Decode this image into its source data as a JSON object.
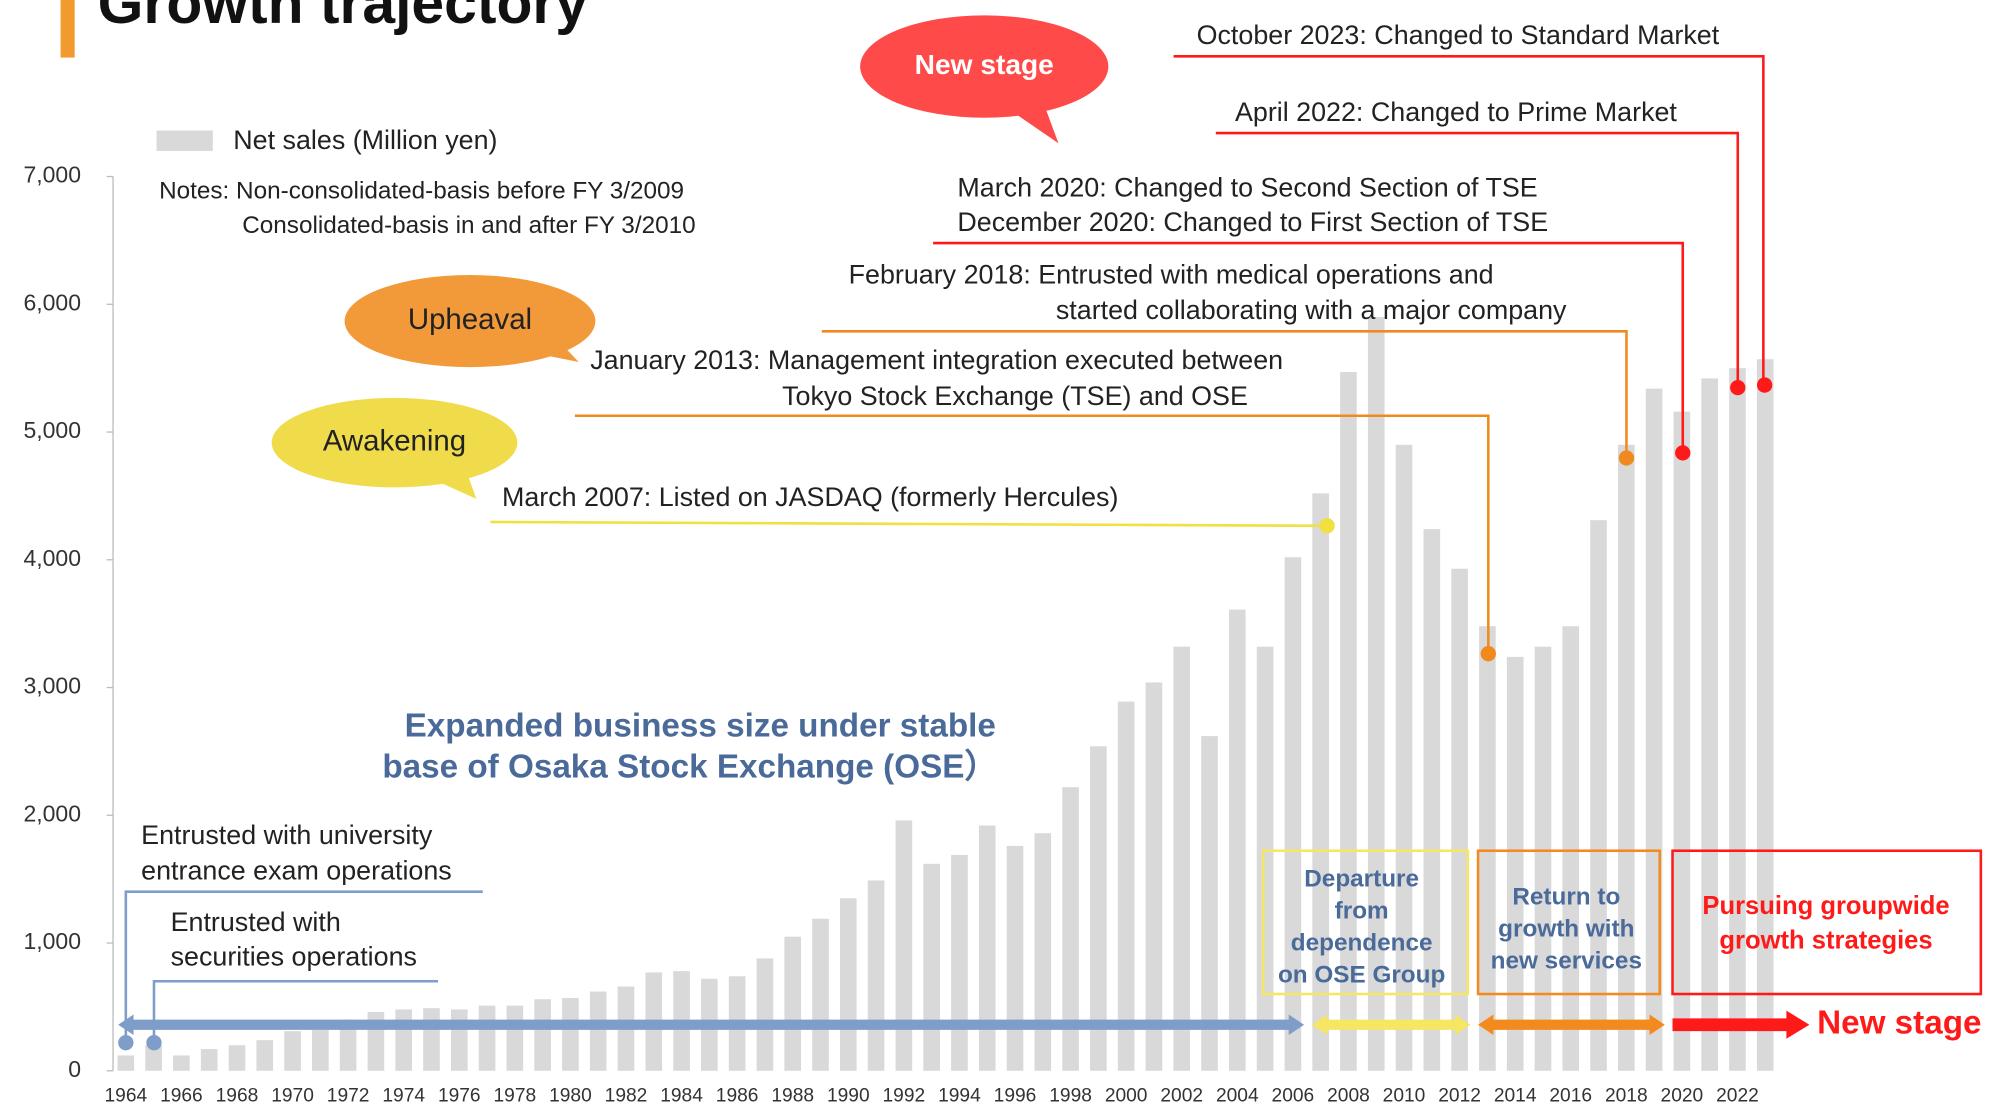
{
  "chart_data": {
    "type": "bar",
    "title": "Growth trajectory",
    "legend": "Net sales (Million yen)",
    "notes": [
      "Notes: Non-consolidated-basis before FY 3/2009",
      "Consolidated-basis in and after FY 3/2010"
    ],
    "color": "#d9d9d9",
    "categories": [
      "1964",
      null,
      "1966",
      null,
      "1968",
      null,
      "1970",
      null,
      "1972",
      null,
      "1974",
      null,
      "1976",
      null,
      "1978",
      null,
      "1980",
      null,
      "1982",
      null,
      "1984",
      null,
      "1986",
      null,
      "1988",
      null,
      "1990",
      null,
      "1992",
      null,
      "1994",
      null,
      "1996",
      null,
      "1998",
      null,
      "2000",
      null,
      "2002",
      null,
      "2004",
      null,
      "2006",
      null,
      "2008",
      null,
      "2010",
      null,
      "2012",
      null,
      "2014",
      null,
      "2016",
      null,
      "2018",
      null,
      "2020",
      null,
      "2022",
      null
    ],
    "values": [
      120,
      200,
      120,
      170,
      200,
      240,
      310,
      320,
      400,
      460,
      480,
      490,
      480,
      510,
      510,
      560,
      570,
      620,
      660,
      770,
      780,
      720,
      740,
      880,
      1050,
      1190,
      1350,
      1490,
      1960,
      1620,
      1690,
      1920,
      1760,
      1860,
      2220,
      2540,
      2890,
      3040,
      3320,
      2620,
      3610,
      3320,
      4020,
      4520,
      5470,
      5900,
      4900,
      4240,
      3930,
      3480,
      3240,
      3320,
      3480,
      4310,
      4900,
      5340,
      5160,
      5420,
      5500,
      5570
    ],
    "ylim": [
      0,
      7000
    ],
    "yticks": [
      0,
      {
        "value": 1000,
        "label": "1,000"
      },
      {
        "value": 2000,
        "label": "2,000"
      },
      {
        "value": 3000,
        "label": "3,000"
      },
      {
        "value": 4000,
        "label": "4,000"
      },
      {
        "value": 5000,
        "label": "5,000"
      },
      {
        "value": 6000,
        "label": "6,000"
      },
      {
        "value": 7000,
        "label": "7,000"
      }
    ],
    "annotations": [
      {
        "text": [
          "New stage"
        ]
      },
      {
        "text": [
          "October 2023: Changed to Standard Market"
        ]
      },
      {
        "text": [
          "April 2022: Changed to Prime Market"
        ]
      },
      {
        "text": [
          "March 2020: Changed to Second Section of TSE",
          "December 2020: Changed to First Section of TSE"
        ]
      },
      {
        "text": [
          "February 2018: Entrusted with medical operations and",
          "started collaborating with a major company"
        ]
      },
      {
        "text": [
          "Upheaval"
        ]
      },
      {
        "text": [
          "January 2013: Management integration executed between",
          "Tokyo Stock Exchange (TSE) and OSE"
        ]
      },
      {
        "text": [
          "Awakening"
        ]
      },
      {
        "text": [
          "March 2007: Listed on JASDAQ (formerly Hercules)"
        ]
      },
      {
        "text": [
          "Expanded business size under stable",
          "base of Osaka Stock Exchange (OSE）"
        ]
      },
      {
        "text": [
          "Entrusted with university",
          "entrance exam operations"
        ]
      },
      {
        "text": [
          "Entrusted with",
          "securities operations"
        ]
      }
    ],
    "phases": [
      {
        "text": [
          "Departure",
          "from",
          "dependence",
          "on OSE Group"
        ]
      },
      {
        "text": [
          "Return to",
          "growth with",
          "new services"
        ]
      },
      {
        "text": [
          "Pursuing groupwide",
          "growth strategies"
        ]
      },
      {
        "text": [
          "New stage"
        ]
      }
    ]
  }
}
